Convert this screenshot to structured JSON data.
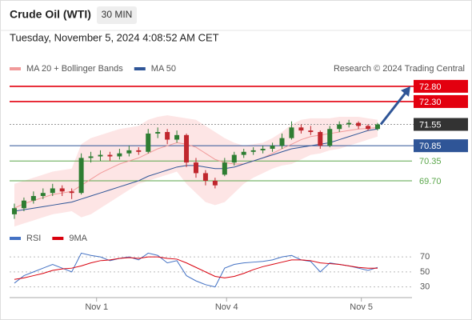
{
  "header": {
    "title": "Crude Oil (WTI)",
    "interval": "30 MIN",
    "timestamp": "Tuesday, November 5, 2024 4:08:52 AM CET"
  },
  "chart_data": [
    {
      "type": "candlestick",
      "legend": [
        {
          "name": "MA 20 + Bollinger Bands",
          "color": "#f19a9a"
        },
        {
          "name": "MA 50",
          "color": "#2f5597"
        }
      ],
      "credit": "Research © 2024 Trading Central",
      "xlim": [
        -0.5,
        41.6
      ],
      "xticks": [
        {
          "value": 8.6,
          "label": "Nov 1"
        },
        {
          "value": 22.2,
          "label": "Nov 4"
        },
        {
          "value": 36.3,
          "label": "Nov 5"
        }
      ],
      "ylim": [
        68.15,
        73.27
      ],
      "up_color": "#2e7d32",
      "down_color": "#c0262d",
      "open": [
        68.6,
        68.8,
        69.05,
        69.2,
        69.3,
        69.45,
        69.35,
        69.3,
        70.45,
        70.5,
        70.55,
        70.5,
        70.6,
        70.7,
        70.65,
        71.25,
        71.3,
        71.05,
        71.2,
        70.3,
        69.95,
        69.7,
        69.9,
        70.3,
        70.55,
        70.65,
        70.7,
        70.75,
        70.85,
        71.1,
        71.45,
        71.35,
        71.3,
        70.85,
        71.4,
        71.55,
        71.6,
        71.5,
        71.4
      ],
      "high": [
        68.95,
        69.15,
        69.35,
        69.45,
        69.6,
        69.55,
        69.45,
        70.6,
        70.65,
        70.7,
        70.65,
        70.75,
        70.85,
        70.8,
        71.4,
        71.45,
        71.4,
        71.35,
        71.25,
        70.45,
        70.05,
        69.8,
        70.45,
        70.65,
        70.75,
        70.8,
        70.85,
        70.95,
        71.25,
        71.65,
        71.55,
        71.5,
        71.35,
        71.5,
        71.65,
        71.7,
        71.65,
        71.55,
        71.6
      ],
      "low": [
        68.45,
        68.7,
        68.95,
        69.1,
        69.2,
        69.2,
        69.1,
        69.25,
        70.3,
        70.35,
        70.35,
        70.4,
        70.5,
        70.55,
        70.6,
        71.1,
        70.9,
        70.95,
        70.15,
        69.8,
        69.55,
        69.45,
        69.85,
        70.2,
        70.45,
        70.55,
        70.6,
        70.65,
        70.75,
        71.05,
        71.25,
        71.2,
        70.75,
        70.8,
        71.3,
        71.45,
        71.4,
        71.35,
        71.35
      ],
      "close": [
        68.8,
        69.05,
        69.2,
        69.3,
        69.45,
        69.35,
        69.3,
        70.45,
        70.5,
        70.55,
        70.5,
        70.6,
        70.7,
        70.65,
        71.25,
        71.3,
        71.05,
        71.2,
        70.3,
        69.95,
        69.7,
        69.55,
        70.3,
        70.55,
        70.65,
        70.7,
        70.75,
        70.85,
        71.1,
        71.45,
        71.35,
        71.3,
        70.85,
        71.4,
        71.55,
        71.6,
        71.5,
        71.4,
        71.55
      ],
      "ma20": [
        68.8,
        68.95,
        69.05,
        69.15,
        69.25,
        69.3,
        69.35,
        69.55,
        69.75,
        69.95,
        70.1,
        70.25,
        70.35,
        70.45,
        70.6,
        70.75,
        70.85,
        70.95,
        70.9,
        70.8,
        70.6,
        70.4,
        70.3,
        70.25,
        70.25,
        70.35,
        70.45,
        70.6,
        70.75,
        70.9,
        71.05,
        71.15,
        71.2,
        71.25,
        71.3,
        71.35,
        71.4,
        71.42,
        71.45
      ],
      "bb_upper": [
        69.6,
        69.7,
        69.8,
        69.9,
        70.0,
        70.05,
        70.1,
        70.9,
        71.1,
        71.2,
        71.3,
        71.4,
        71.45,
        71.5,
        71.7,
        71.8,
        71.85,
        71.8,
        71.75,
        71.7,
        71.5,
        71.3,
        71.1,
        70.95,
        70.85,
        70.9,
        70.95,
        71.1,
        71.3,
        71.55,
        71.7,
        71.75,
        71.75,
        71.75,
        71.8,
        71.8,
        71.8,
        71.75,
        71.7
      ],
      "bb_lower": [
        68.2,
        68.3,
        68.4,
        68.5,
        68.6,
        68.65,
        68.7,
        68.5,
        68.6,
        68.8,
        69.0,
        69.2,
        69.4,
        69.6,
        69.7,
        69.8,
        69.9,
        70.0,
        69.6,
        69.3,
        69.0,
        68.9,
        69.0,
        69.3,
        69.6,
        69.8,
        69.95,
        70.1,
        70.2,
        70.25,
        70.4,
        70.55,
        70.6,
        70.7,
        70.75,
        70.85,
        70.95,
        71.05,
        71.15
      ],
      "ma50": [
        68.7,
        68.75,
        68.8,
        68.85,
        68.9,
        68.95,
        69.0,
        69.1,
        69.2,
        69.3,
        69.4,
        69.5,
        69.6,
        69.7,
        69.85,
        69.95,
        70.05,
        70.15,
        70.2,
        70.2,
        70.15,
        70.1,
        70.1,
        70.15,
        70.25,
        70.35,
        70.45,
        70.55,
        70.65,
        70.75,
        70.8,
        70.85,
        70.9,
        70.95,
        71.05,
        71.15,
        71.25,
        71.35,
        71.4
      ],
      "levels": [
        {
          "value": 72.8,
          "label": "72.80",
          "color": "#e3000f",
          "line": "solid",
          "boxed": true
        },
        {
          "value": 72.3,
          "label": "72.30",
          "color": "#e3000f",
          "line": "solid",
          "boxed": true
        },
        {
          "value": 71.55,
          "label": "71.55",
          "color": "#333333",
          "line": "dotted",
          "boxed": true
        },
        {
          "value": 70.85,
          "label": "70.85",
          "color": "#2f5597",
          "line": "solid",
          "boxed": true
        },
        {
          "value": 70.35,
          "label": "70.35",
          "color": "#5aa64a",
          "line": "solid",
          "boxed": false
        },
        {
          "value": 69.7,
          "label": "69.70",
          "color": "#5aa64a",
          "line": "solid",
          "boxed": false
        }
      ]
    },
    {
      "type": "line",
      "series": [
        {
          "name": "RSI",
          "color": "#4472c4",
          "values": [
            35,
            45,
            50,
            55,
            60,
            55,
            50,
            75,
            72,
            70,
            65,
            68,
            70,
            66,
            75,
            72,
            62,
            65,
            45,
            38,
            33,
            30,
            55,
            60,
            62,
            63,
            64,
            66,
            70,
            72,
            66,
            64,
            50,
            62,
            60,
            58,
            55,
            52,
            56
          ]
        },
        {
          "name": "9MA",
          "color": "#d9000d",
          "values": [
            40,
            42,
            45,
            48,
            52,
            54,
            55,
            58,
            62,
            65,
            66,
            68,
            69,
            68,
            70,
            70,
            68,
            67,
            62,
            56,
            50,
            44,
            42,
            44,
            48,
            53,
            57,
            60,
            63,
            66,
            66,
            65,
            62,
            61,
            60,
            58,
            56,
            55,
            55
          ]
        }
      ],
      "xlim": [
        -0.5,
        41.6
      ],
      "ylim": [
        20,
        84
      ],
      "yticks": [
        70,
        50,
        30
      ]
    }
  ]
}
